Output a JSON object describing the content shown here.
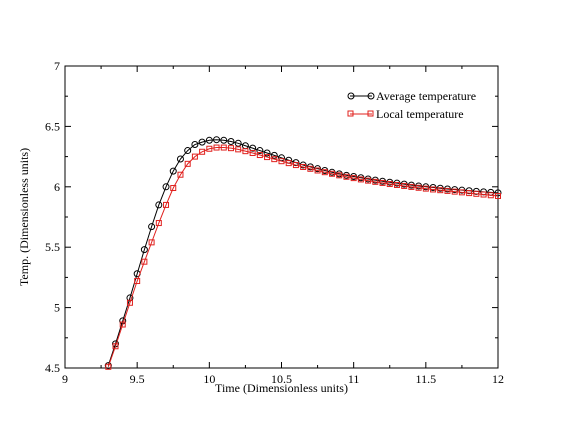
{
  "chart_data": {
    "type": "line",
    "title": "",
    "xlabel": "Time (Dimensionless units)",
    "ylabel": "Temp. (Dimensionless units)",
    "xlim": [
      9,
      12
    ],
    "ylim": [
      4.5,
      7
    ],
    "grid": false,
    "legend_position": "top-right",
    "x_ticks": [
      "9",
      "9.5",
      "10",
      "10.5",
      "11",
      "11.5",
      "12"
    ],
    "y_ticks": [
      "4.5",
      "5",
      "5.5",
      "6",
      "6.5",
      "7"
    ],
    "series": [
      {
        "name": "Average temperature",
        "color": "#000000",
        "marker": "circle",
        "points": [
          [
            9.3,
            4.52
          ],
          [
            9.35,
            4.7
          ],
          [
            9.4,
            4.89
          ],
          [
            9.45,
            5.08
          ],
          [
            9.5,
            5.28
          ],
          [
            9.55,
            5.48
          ],
          [
            9.6,
            5.67
          ],
          [
            9.65,
            5.85
          ],
          [
            9.7,
            6.0
          ],
          [
            9.75,
            6.13
          ],
          [
            9.8,
            6.23
          ],
          [
            9.85,
            6.3
          ],
          [
            9.9,
            6.35
          ],
          [
            9.95,
            6.37
          ],
          [
            10.0,
            6.385
          ],
          [
            10.05,
            6.39
          ],
          [
            10.1,
            6.385
          ],
          [
            10.15,
            6.375
          ],
          [
            10.2,
            6.36
          ],
          [
            10.25,
            6.34
          ],
          [
            10.3,
            6.32
          ],
          [
            10.35,
            6.3
          ],
          [
            10.4,
            6.28
          ],
          [
            10.45,
            6.26
          ],
          [
            10.5,
            6.24
          ],
          [
            10.55,
            6.22
          ],
          [
            10.6,
            6.2
          ],
          [
            10.65,
            6.18
          ],
          [
            10.7,
            6.165
          ],
          [
            10.75,
            6.15
          ],
          [
            10.8,
            6.135
          ],
          [
            10.85,
            6.12
          ],
          [
            10.9,
            6.107
          ],
          [
            10.95,
            6.095
          ],
          [
            11.0,
            6.085
          ],
          [
            11.05,
            6.075
          ],
          [
            11.1,
            6.065
          ],
          [
            11.15,
            6.055
          ],
          [
            11.2,
            6.046
          ],
          [
            11.25,
            6.038
          ],
          [
            11.3,
            6.03
          ],
          [
            11.35,
            6.022
          ],
          [
            11.4,
            6.014
          ],
          [
            11.45,
            6.007
          ],
          [
            11.5,
            6.0
          ],
          [
            11.55,
            5.994
          ],
          [
            11.6,
            5.988
          ],
          [
            11.65,
            5.982
          ],
          [
            11.7,
            5.977
          ],
          [
            11.75,
            5.972
          ],
          [
            11.8,
            5.967
          ],
          [
            11.85,
            5.962
          ],
          [
            11.9,
            5.958
          ],
          [
            11.95,
            5.954
          ],
          [
            12.0,
            5.95
          ]
        ]
      },
      {
        "name": "Local temperature",
        "color": "#e0201d",
        "marker": "square",
        "points": [
          [
            9.3,
            4.51
          ],
          [
            9.35,
            4.68
          ],
          [
            9.4,
            4.86
          ],
          [
            9.45,
            5.04
          ],
          [
            9.5,
            5.22
          ],
          [
            9.55,
            5.38
          ],
          [
            9.6,
            5.54
          ],
          [
            9.65,
            5.7
          ],
          [
            9.7,
            5.85
          ],
          [
            9.75,
            5.99
          ],
          [
            9.8,
            6.1
          ],
          [
            9.85,
            6.19
          ],
          [
            9.9,
            6.25
          ],
          [
            9.95,
            6.29
          ],
          [
            10.0,
            6.315
          ],
          [
            10.05,
            6.325
          ],
          [
            10.1,
            6.325
          ],
          [
            10.15,
            6.32
          ],
          [
            10.2,
            6.31
          ],
          [
            10.25,
            6.295
          ],
          [
            10.3,
            6.28
          ],
          [
            10.35,
            6.263
          ],
          [
            10.4,
            6.246
          ],
          [
            10.45,
            6.229
          ],
          [
            10.5,
            6.212
          ],
          [
            10.55,
            6.196
          ],
          [
            10.6,
            6.18
          ],
          [
            10.65,
            6.164
          ],
          [
            10.7,
            6.149
          ],
          [
            10.75,
            6.135
          ],
          [
            10.8,
            6.121
          ],
          [
            10.85,
            6.108
          ],
          [
            10.9,
            6.095
          ],
          [
            10.95,
            6.083
          ],
          [
            11.0,
            6.072
          ],
          [
            11.05,
            6.061
          ],
          [
            11.1,
            6.051
          ],
          [
            11.15,
            6.041
          ],
          [
            11.2,
            6.032
          ],
          [
            11.25,
            6.023
          ],
          [
            11.3,
            6.015
          ],
          [
            11.35,
            6.007
          ],
          [
            11.4,
            5.999
          ],
          [
            11.45,
            5.992
          ],
          [
            11.5,
            5.985
          ],
          [
            11.55,
            5.978
          ],
          [
            11.6,
            5.972
          ],
          [
            11.65,
            5.966
          ],
          [
            11.7,
            5.96
          ],
          [
            11.75,
            5.954
          ],
          [
            11.8,
            5.948
          ],
          [
            11.85,
            5.942
          ],
          [
            11.9,
            5.936
          ],
          [
            11.95,
            5.93
          ],
          [
            12.0,
            5.924
          ]
        ]
      }
    ]
  }
}
